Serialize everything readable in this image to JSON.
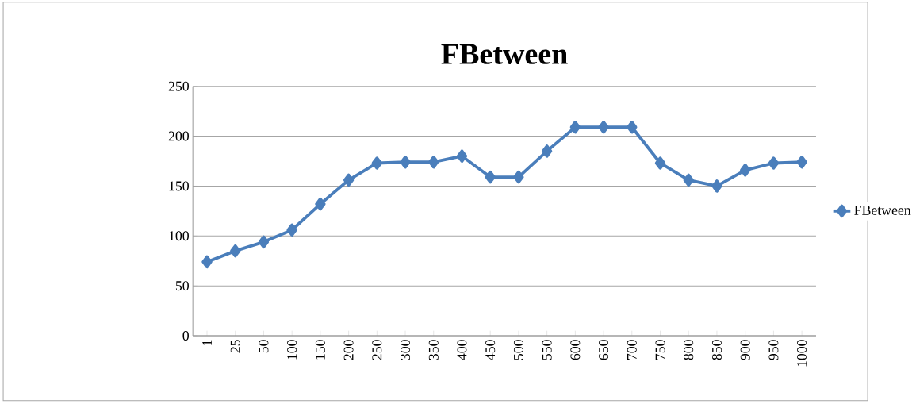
{
  "chart_data": {
    "type": "line",
    "title": "FBetween",
    "categories": [
      "1",
      "25",
      "50",
      "100",
      "150",
      "200",
      "250",
      "300",
      "350",
      "400",
      "450",
      "500",
      "550",
      "600",
      "650",
      "700",
      "750",
      "800",
      "850",
      "900",
      "950",
      "1000"
    ],
    "series": [
      {
        "name": "FBetween",
        "color": "#4a7ebb",
        "values": [
          74,
          85,
          94,
          106,
          132,
          156,
          173,
          174,
          174,
          180,
          159,
          159,
          185,
          209,
          209,
          209,
          173,
          156,
          150,
          166,
          173,
          174
        ]
      }
    ],
    "ylim": [
      0,
      250
    ],
    "yticks": [
      0,
      50,
      100,
      150,
      200,
      250
    ],
    "grid": "y",
    "legend": "right",
    "marker": "diamond",
    "line_style": "solid"
  }
}
